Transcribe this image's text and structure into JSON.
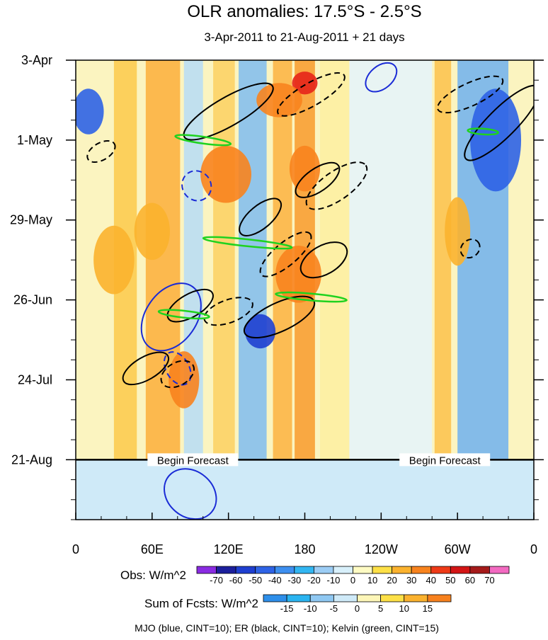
{
  "chart_data": {
    "type": "heatmap",
    "title": "OLR anomalies: 17.5°S - 2.5°S",
    "subtitle": "3-Apr-2011 to 21-Aug-2011 + 21 days",
    "x_ticks": [
      {
        "lon": 0,
        "label": "0"
      },
      {
        "lon": 60,
        "label": "60E"
      },
      {
        "lon": 120,
        "label": "120E"
      },
      {
        "lon": 180,
        "label": "180"
      },
      {
        "lon": 240,
        "label": "120W"
      },
      {
        "lon": 300,
        "label": "60W"
      },
      {
        "lon": 360,
        "label": "0"
      }
    ],
    "y_ticks": [
      {
        "day": 0,
        "label": "3-Apr"
      },
      {
        "day": 28,
        "label": "1-May"
      },
      {
        "day": 56,
        "label": "29-May"
      },
      {
        "day": 84,
        "label": "26-Jun"
      },
      {
        "day": 112,
        "label": "24-Jul"
      },
      {
        "day": 140,
        "label": "21-Aug"
      }
    ],
    "xlim": [
      0,
      360
    ],
    "ylim_days": [
      0,
      161
    ],
    "forecast_start_day": 140,
    "forecast_label": "Begin Forecast",
    "forecast_label_lons": [
      92,
      290
    ],
    "obs_colorbar": {
      "label": "Obs: W/m^2",
      "levels": [
        "-70",
        "-60",
        "-50",
        "-40",
        "-30",
        "-20",
        "-10",
        "0",
        "10",
        "20",
        "30",
        "40",
        "50",
        "60",
        "70"
      ],
      "colors": [
        "#8a2be2",
        "#1c1f9c",
        "#1f3fd0",
        "#2e63e6",
        "#3d8ff0",
        "#32b6f2",
        "#9ccdf5",
        "#d8f0fb",
        "#fefbc3",
        "#fde047",
        "#fbb22e",
        "#f8831e",
        "#ee3a17",
        "#d31515",
        "#a51a1a",
        "#f36ac1"
      ]
    },
    "fcst_colorbar": {
      "label": "Sum of Fcsts: W/m^2",
      "levels": [
        "-15",
        "-10",
        "-5",
        "0",
        "5",
        "10",
        "15"
      ],
      "colors": [
        "#2e8fea",
        "#2bb4f0",
        "#8fc8f2",
        "#cfeaf8",
        "#fdf6b8",
        "#fde047",
        "#fbb22e",
        "#f7811e"
      ]
    },
    "footer": "MJO (blue, CINT=10); ER (black, CINT=10); Kelvin (green, CINT=15)",
    "contour_colors": {
      "mjo": "#1a2bd6",
      "er": "#000000",
      "kelvin": "#1fd21f"
    },
    "bands": [
      {
        "lon0": 30,
        "lon1": 48,
        "color": "#fcc94a"
      },
      {
        "lon0": 55,
        "lon1": 82,
        "color": "#fbae3a"
      },
      {
        "lon0": 85,
        "lon1": 100,
        "color": "#b6dcf6"
      },
      {
        "lon0": 108,
        "lon1": 125,
        "color": "#fcd060"
      },
      {
        "lon0": 128,
        "lon1": 150,
        "color": "#7fbcf0"
      },
      {
        "lon0": 155,
        "lon1": 170,
        "color": "#fbb240"
      },
      {
        "lon0": 172,
        "lon1": 188,
        "color": "#f89a2c"
      },
      {
        "lon0": 192,
        "lon1": 215,
        "color": "#fdeea0"
      },
      {
        "lon0": 215,
        "lon1": 280,
        "color": "#e4f3fb"
      },
      {
        "lon0": 282,
        "lon1": 295,
        "color": "#fcc14a"
      },
      {
        "lon0": 300,
        "lon1": 340,
        "color": "#6eb0ee"
      }
    ],
    "blobs": [
      {
        "lon": 180,
        "day": 8,
        "rx": 10,
        "ry": 4,
        "color": "#e6231a"
      },
      {
        "lon": 160,
        "day": 14,
        "rx": 18,
        "ry": 6,
        "color": "#f8831e"
      },
      {
        "lon": 10,
        "day": 18,
        "rx": 12,
        "ry": 8,
        "color": "#2e63e6"
      },
      {
        "lon": 118,
        "day": 40,
        "rx": 20,
        "ry": 10,
        "color": "#f8831e"
      },
      {
        "lon": 180,
        "day": 38,
        "rx": 12,
        "ry": 8,
        "color": "#f8831e"
      },
      {
        "lon": 175,
        "day": 75,
        "rx": 18,
        "ry": 10,
        "color": "#f8831e"
      },
      {
        "lon": 145,
        "day": 95,
        "rx": 12,
        "ry": 6,
        "color": "#1f3fd0"
      },
      {
        "lon": 85,
        "day": 112,
        "rx": 12,
        "ry": 10,
        "color": "#f8831e"
      },
      {
        "lon": 330,
        "day": 28,
        "rx": 20,
        "ry": 18,
        "color": "#2e63e6"
      },
      {
        "lon": 60,
        "day": 60,
        "rx": 14,
        "ry": 10,
        "color": "#fbb22e"
      },
      {
        "lon": 30,
        "day": 70,
        "rx": 16,
        "ry": 12,
        "color": "#fbb22e"
      },
      {
        "lon": 300,
        "day": 60,
        "rx": 10,
        "ry": 12,
        "color": "#fbb22e"
      }
    ],
    "contours": [
      {
        "type": "mjo",
        "lon": 75,
        "day": 90,
        "rx": 20,
        "ry": 13,
        "rot": 35,
        "dashed": false
      },
      {
        "type": "mjo",
        "lon": 90,
        "day": 152,
        "rx": 22,
        "ry": 8,
        "rot": 40,
        "dashed": false
      },
      {
        "type": "mjo",
        "lon": 95,
        "day": 44,
        "rx": 12,
        "ry": 5,
        "rot": 55,
        "dashed": true
      },
      {
        "type": "mjo",
        "lon": 80,
        "day": 108,
        "rx": 14,
        "ry": 4,
        "rot": 60,
        "dashed": true
      },
      {
        "type": "mjo",
        "lon": 240,
        "day": 6,
        "rx": 14,
        "ry": 4,
        "rot": -40,
        "dashed": false
      },
      {
        "type": "er",
        "lon": 120,
        "day": 18,
        "rx": 40,
        "ry": 5,
        "rot": -30,
        "dashed": false
      },
      {
        "type": "er",
        "lon": 185,
        "day": 12,
        "rx": 30,
        "ry": 4,
        "rot": -30,
        "dashed": true
      },
      {
        "type": "er",
        "lon": 20,
        "day": 32,
        "rx": 12,
        "ry": 3,
        "rot": -30,
        "dashed": true
      },
      {
        "type": "er",
        "lon": 190,
        "day": 42,
        "rx": 20,
        "ry": 4,
        "rot": -35,
        "dashed": false
      },
      {
        "type": "er",
        "lon": 205,
        "day": 44,
        "rx": 28,
        "ry": 5,
        "rot": -35,
        "dashed": true
      },
      {
        "type": "er",
        "lon": 145,
        "day": 55,
        "rx": 20,
        "ry": 4,
        "rot": -40,
        "dashed": false
      },
      {
        "type": "er",
        "lon": 165,
        "day": 68,
        "rx": 25,
        "ry": 4,
        "rot": -40,
        "dashed": true
      },
      {
        "type": "er",
        "lon": 195,
        "day": 70,
        "rx": 20,
        "ry": 5,
        "rot": -30,
        "dashed": false
      },
      {
        "type": "er",
        "lon": 90,
        "day": 86,
        "rx": 20,
        "ry": 4,
        "rot": -30,
        "dashed": false
      },
      {
        "type": "er",
        "lon": 120,
        "day": 88,
        "rx": 20,
        "ry": 4,
        "rot": -20,
        "dashed": true
      },
      {
        "type": "er",
        "lon": 160,
        "day": 90,
        "rx": 30,
        "ry": 5,
        "rot": -25,
        "dashed": false
      },
      {
        "type": "er",
        "lon": 55,
        "day": 108,
        "rx": 20,
        "ry": 4,
        "rot": -30,
        "dashed": false
      },
      {
        "type": "er",
        "lon": 80,
        "day": 110,
        "rx": 14,
        "ry": 4,
        "rot": -30,
        "dashed": true
      },
      {
        "type": "er",
        "lon": 310,
        "day": 12,
        "rx": 28,
        "ry": 4,
        "rot": -25,
        "dashed": true
      },
      {
        "type": "er",
        "lon": 335,
        "day": 22,
        "rx": 40,
        "ry": 5,
        "rot": -45,
        "dashed": false
      },
      {
        "type": "er",
        "lon": 310,
        "day": 66,
        "rx": 8,
        "ry": 3,
        "rot": -40,
        "dashed": true
      },
      {
        "type": "kelvin",
        "lon": 100,
        "day": 28,
        "rx": 22,
        "ry": 1.2,
        "rot": 8,
        "dashed": false
      },
      {
        "type": "kelvin",
        "lon": 135,
        "day": 64,
        "rx": 35,
        "ry": 1.2,
        "rot": 6,
        "dashed": false
      },
      {
        "type": "kelvin",
        "lon": 185,
        "day": 83,
        "rx": 28,
        "ry": 1.2,
        "rot": 5,
        "dashed": false
      },
      {
        "type": "kelvin",
        "lon": 85,
        "day": 89,
        "rx": 20,
        "ry": 1.2,
        "rot": 6,
        "dashed": false
      },
      {
        "type": "kelvin",
        "lon": 320,
        "day": 25,
        "rx": 12,
        "ry": 1,
        "rot": 4,
        "dashed": false
      }
    ]
  }
}
